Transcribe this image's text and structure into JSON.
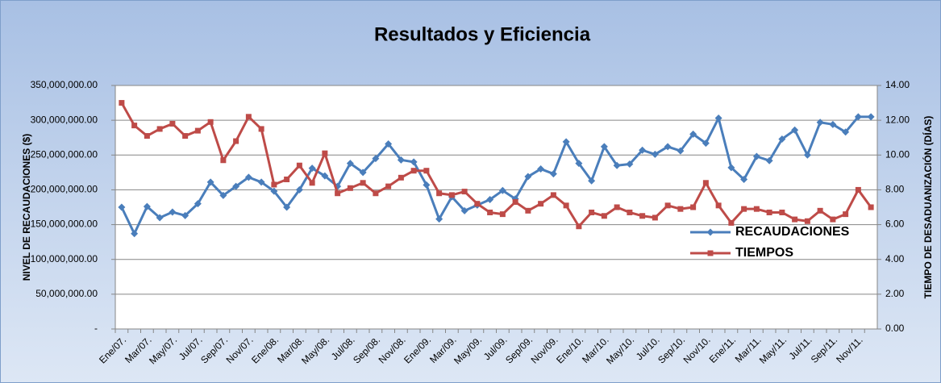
{
  "chart_data": {
    "type": "line",
    "title": "Resultados y Eficiencia",
    "y_label": "NIVEL DE RECAUDACIONES ($)",
    "y2_label": "TIEMPO DE DESADUANIZACIÓN  (DÍAS)",
    "categories": [
      "Ene/07.",
      null,
      "Mar/07.",
      null,
      "May/07.",
      null,
      "Jul/07.",
      null,
      "Sep/07.",
      null,
      "Nov/07.",
      null,
      "Ene/08.",
      null,
      "Mar/08.",
      null,
      "May/08.",
      null,
      "Jul/08.",
      null,
      "Sep/08.",
      null,
      "Nov/08.",
      null,
      "Ene/09.",
      null,
      "Mar/09.",
      null,
      "May/09.",
      null,
      "Jul/09.",
      null,
      "Sep/09.",
      null,
      "Nov/09.",
      null,
      "Ene/10.",
      null,
      "Mar/10.",
      null,
      "May/10.",
      null,
      "Jul/10.",
      null,
      "Sep/10.",
      null,
      "Nov/10.",
      null,
      "Ene/11.",
      null,
      "Mar/11.",
      null,
      "May/11.",
      null,
      "Jul/11.",
      null,
      "Sep/11.",
      null,
      "Nov/11.",
      null
    ],
    "series": [
      {
        "name": "RECAUDACIONES",
        "color": "#4a7ebb",
        "marker": "diamond",
        "values": [
          175000000,
          137000000,
          176000000,
          160000000,
          168000000,
          163000000,
          180000000,
          211000000,
          192000000,
          205000000,
          218000000,
          211000000,
          198000000,
          175000000,
          200000000,
          231000000,
          220000000,
          205000000,
          238000000,
          225000000,
          245000000,
          266000000,
          243000000,
          240000000,
          207000000,
          158000000,
          190000000,
          170000000,
          178000000,
          186000000,
          199000000,
          187000000,
          219000000,
          230000000,
          223000000,
          269000000,
          238000000,
          213000000,
          262000000,
          235000000,
          237000000,
          257000000,
          251000000,
          262000000,
          256000000,
          280000000,
          267000000,
          303000000,
          232000000,
          215000000,
          248000000,
          242000000,
          273000000,
          286000000,
          250000000,
          297000000,
          294000000,
          283000000,
          305000000,
          305000000
        ]
      },
      {
        "name": "TIEMPOS",
        "color": "#be4b48",
        "marker": "square",
        "axis": "y2",
        "values": [
          13.0,
          11.7,
          11.1,
          11.5,
          11.8,
          11.1,
          11.4,
          11.9,
          9.7,
          10.8,
          12.2,
          11.5,
          8.3,
          8.6,
          9.4,
          8.4,
          10.1,
          7.8,
          8.1,
          8.4,
          7.8,
          8.2,
          8.7,
          9.1,
          9.1,
          7.8,
          7.7,
          7.9,
          7.2,
          6.7,
          6.6,
          7.3,
          6.8,
          7.2,
          7.7,
          7.1,
          5.9,
          6.7,
          6.5,
          7.0,
          6.7,
          6.5,
          6.4,
          7.1,
          6.9,
          7.0,
          8.4,
          7.1,
          6.1,
          6.9,
          6.9,
          6.7,
          6.7,
          6.3,
          6.2,
          6.8,
          6.3,
          6.6,
          8.0,
          7.0
        ]
      }
    ],
    "ylim": [
      0,
      350000000
    ],
    "yticks": [
      {
        "value": 0,
        "label": "-"
      },
      {
        "value": 50000000,
        "label": "50,000,000.00"
      },
      {
        "value": 100000000,
        "label": "100,000,000.00"
      },
      {
        "value": 150000000,
        "label": "150,000,000.00"
      },
      {
        "value": 200000000,
        "label": "200,000,000.00"
      },
      {
        "value": 250000000,
        "label": "250,000,000.00"
      },
      {
        "value": 300000000,
        "label": "300,000,000.00"
      },
      {
        "value": 350000000,
        "label": "350,000,000.00"
      }
    ],
    "y2lim": [
      0,
      14
    ],
    "y2ticks": [
      {
        "value": 0,
        "label": "0.00"
      },
      {
        "value": 2,
        "label": "2.00"
      },
      {
        "value": 4,
        "label": "4.00"
      },
      {
        "value": 6,
        "label": "6.00"
      },
      {
        "value": 8,
        "label": "8.00"
      },
      {
        "value": 10,
        "label": "10.00"
      },
      {
        "value": 12,
        "label": "12.00"
      },
      {
        "value": 14,
        "label": "14.00"
      }
    ],
    "grid": true,
    "legend": "lower right"
  }
}
